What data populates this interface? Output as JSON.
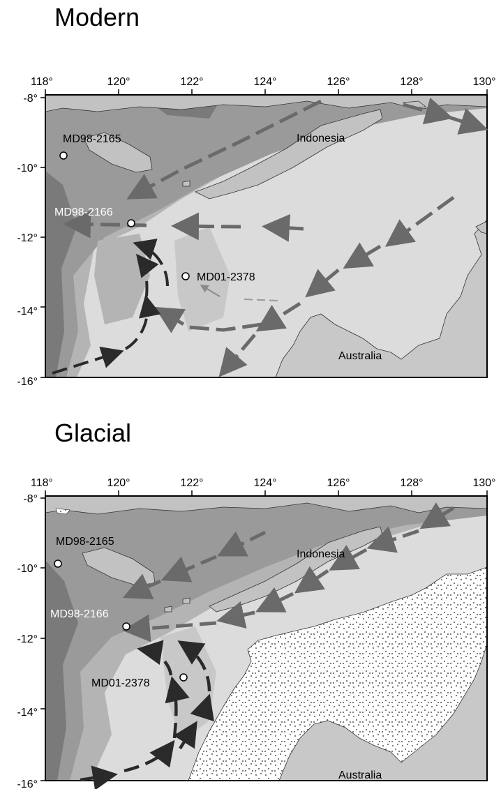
{
  "panels": [
    {
      "title": "Modern",
      "lon_ticks": [
        "118°",
        "120°",
        "122°",
        "124°",
        "126°",
        "128°",
        "130°"
      ],
      "lat_ticks": [
        "-8°",
        "-10°",
        "-12°",
        "-14°",
        "-16°"
      ],
      "labels": {
        "indonesia": "Indonesia",
        "australia": "Australia"
      },
      "sites": [
        "MD98-2165",
        "MD98-2166",
        "MD01-2378"
      ]
    },
    {
      "title": "Glacial",
      "lon_ticks": [
        "118°",
        "120°",
        "122°",
        "124°",
        "126°",
        "128°",
        "130°"
      ],
      "lat_ticks": [
        "-8°",
        "-10°",
        "-12°",
        "-14°",
        "-16°"
      ],
      "labels": {
        "indonesia": "Indonesia",
        "australia": "Australia"
      },
      "sites": [
        "MD98-2165",
        "MD98-2166",
        "MD01-2378"
      ]
    }
  ],
  "colors": {
    "deep": "#7a7a7a",
    "mid_deep": "#9a9a9a",
    "mid": "#b4b4b4",
    "shelf": "#c8c8c8",
    "shallow": "#dcdcdc",
    "land": "#c2c2c2",
    "arrow_gray": "#6a6a6a",
    "arrow_black": "#2a2a2a"
  }
}
